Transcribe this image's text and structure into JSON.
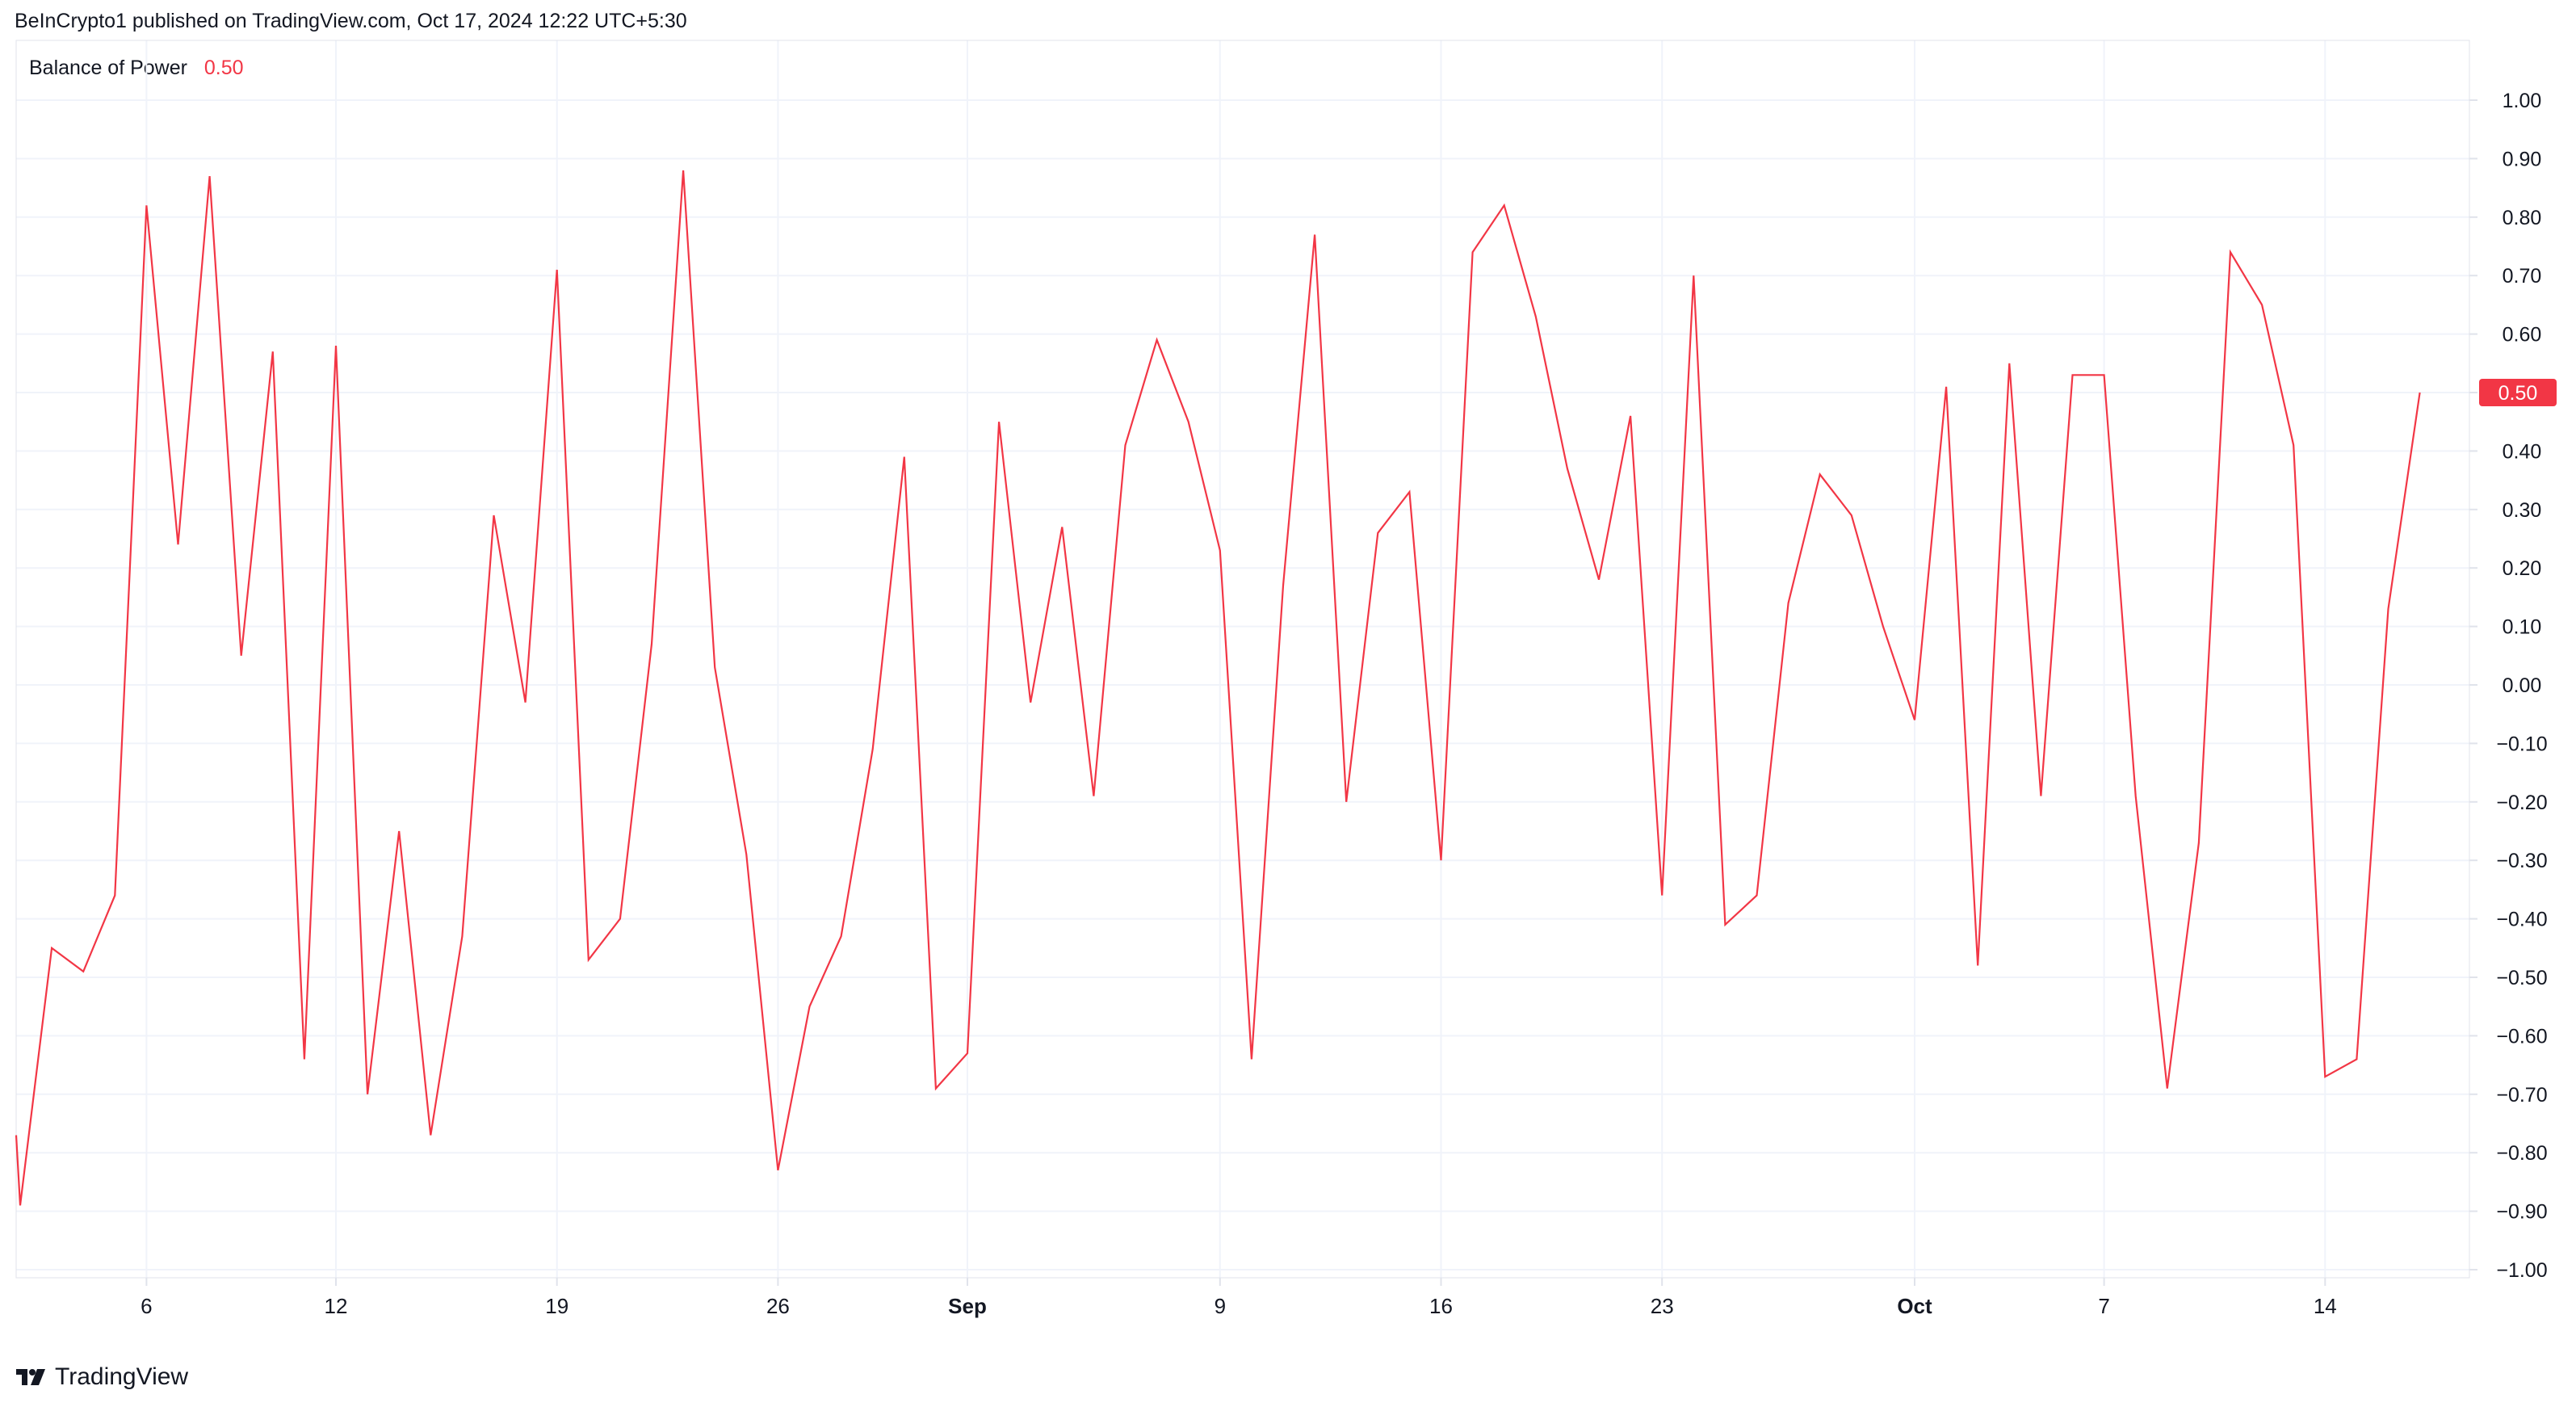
{
  "header": {
    "publish_text": "BeInCrypto1 published on TradingView.com, Oct 17, 2024 12:22 UTC+5:30"
  },
  "indicator": {
    "name": "Balance of Power",
    "value": "0.50"
  },
  "footer": {
    "brand": "TradingView"
  },
  "colors": {
    "line": "#F23645",
    "grid": "#F0F3FA",
    "text": "#131722",
    "axis_border": "#E0E3EB"
  },
  "chart_data": {
    "type": "line",
    "title": "Balance of Power",
    "xlabel": "",
    "ylabel": "",
    "ylim": [
      -1.1,
      1.1
    ],
    "grid": true,
    "y_ticks": [
      "1.00",
      "0.90",
      "0.80",
      "0.70",
      "0.60",
      "0.50",
      "0.40",
      "0.30",
      "0.20",
      "0.10",
      "0.00",
      "−0.10",
      "−0.20",
      "−0.30",
      "−0.40",
      "−0.50",
      "−0.60",
      "−0.70",
      "−0.80",
      "−0.90",
      "−1.00"
    ],
    "x_ticks": [
      {
        "label": "6",
        "index": 4,
        "bold": false
      },
      {
        "label": "12",
        "index": 10,
        "bold": false
      },
      {
        "label": "19",
        "index": 17,
        "bold": false
      },
      {
        "label": "26",
        "index": 24,
        "bold": false
      },
      {
        "label": "Sep",
        "index": 30,
        "bold": true
      },
      {
        "label": "9",
        "index": 38,
        "bold": false
      },
      {
        "label": "16",
        "index": 45,
        "bold": false
      },
      {
        "label": "23",
        "index": 52,
        "bold": false
      },
      {
        "label": "Oct",
        "index": 60,
        "bold": true
      },
      {
        "label": "7",
        "index": 66,
        "bold": false
      },
      {
        "label": "14",
        "index": 73,
        "bold": false
      }
    ],
    "last_value_label": "0.50",
    "series": [
      {
        "values": [
          -0.89,
          -0.45,
          -0.49,
          -0.36,
          0.82,
          0.24,
          0.87,
          0.05,
          0.57,
          -0.64,
          0.58,
          -0.7,
          -0.25,
          -0.77,
          -0.43,
          0.29,
          -0.03,
          0.71,
          -0.47,
          -0.4,
          0.07,
          0.88,
          0.03,
          -0.29,
          -0.83,
          -0.55,
          -0.43,
          -0.11,
          0.39,
          -0.69,
          -0.63,
          0.45,
          -0.03,
          0.27,
          -0.19,
          0.41,
          0.59,
          0.45,
          0.23,
          -0.64,
          0.17,
          0.77,
          -0.2,
          0.26,
          0.33,
          -0.3,
          0.74,
          0.82,
          0.63,
          0.37,
          0.18,
          0.46,
          -0.36,
          0.7,
          -0.41,
          -0.36,
          0.14,
          0.36,
          0.29,
          0.1,
          -0.06,
          0.51,
          -0.48,
          0.55,
          -0.19,
          0.53,
          0.53,
          -0.19,
          -0.69,
          -0.27,
          0.74,
          0.65,
          0.41,
          -0.67,
          -0.64,
          0.13,
          0.5
        ]
      }
    ]
  }
}
